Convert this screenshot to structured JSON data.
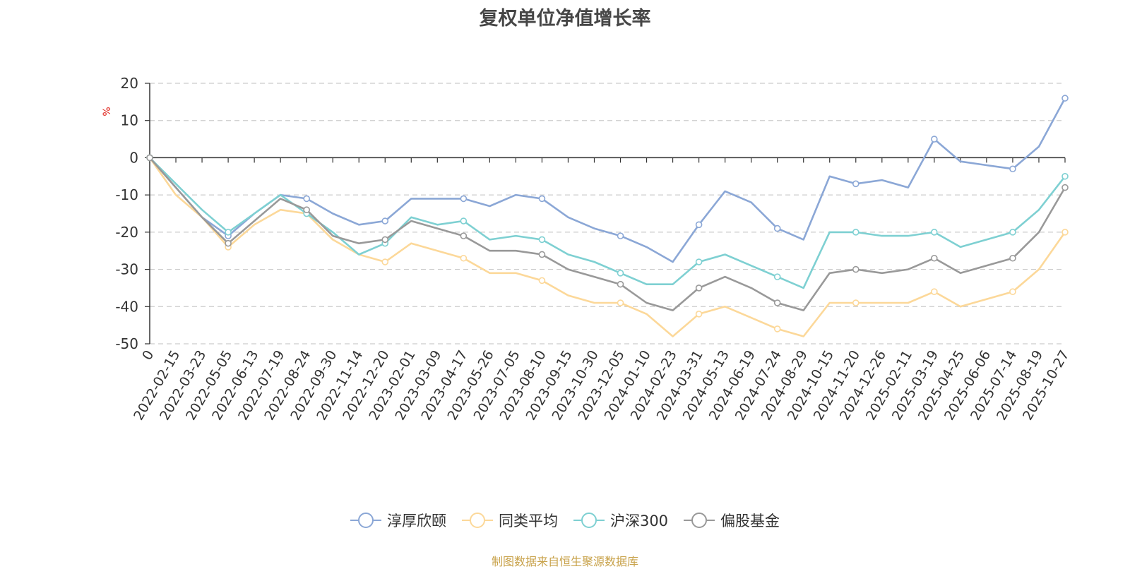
{
  "chart_data": {
    "type": "line",
    "title": "复权单位净值增长率",
    "ylabel": "%",
    "ylim": [
      -50,
      20
    ],
    "yticks": [
      20,
      10,
      0,
      -10,
      -20,
      -30,
      -40,
      -50
    ],
    "grid": true,
    "legend_position": "bottom",
    "x": [
      "0",
      "2022-02-15",
      "2022-03-23",
      "2022-05-05",
      "2022-06-13",
      "2022-07-19",
      "2022-08-24",
      "2022-09-30",
      "2022-11-14",
      "2022-12-20",
      "2023-02-01",
      "2023-03-09",
      "2023-04-17",
      "2023-05-26",
      "2023-07-05",
      "2023-08-10",
      "2023-09-15",
      "2023-10-30",
      "2023-12-05",
      "2024-01-10",
      "2024-02-23",
      "2024-03-31",
      "2024-05-13",
      "2024-06-19",
      "2024-07-24",
      "2024-08-29",
      "2024-10-15",
      "2024-11-20",
      "2024-12-26",
      "2025-02-11",
      "2025-03-19",
      "2025-04-25",
      "2025-06-06",
      "2025-07-14",
      "2025-08-19",
      "2025-10-27"
    ],
    "series": [
      {
        "name": "淳厚欣颐",
        "color": "#8ba7d6",
        "values": [
          0,
          -8,
          -16,
          -21,
          -15,
          -10,
          -11,
          -15,
          -18,
          -17,
          -11,
          -11,
          -11,
          -13,
          -10,
          -11,
          -16,
          -19,
          -21,
          -24,
          -28,
          -18,
          -9,
          -12,
          -19,
          -22,
          -5,
          -7,
          -6,
          -8,
          5,
          -1,
          -2,
          -3,
          3,
          16
        ]
      },
      {
        "name": "同类平均",
        "color": "#fcd899",
        "values": [
          0,
          -10,
          -16,
          -24,
          -18,
          -14,
          -15,
          -22,
          -26,
          -28,
          -23,
          -25,
          -27,
          -31,
          -31,
          -33,
          -37,
          -39,
          -39,
          -42,
          -48,
          -42,
          -40,
          -43,
          -46,
          -48,
          -39,
          -39,
          -39,
          -39,
          -36,
          -40,
          -38,
          -36,
          -30,
          -20
        ]
      },
      {
        "name": "沪深300",
        "color": "#7ed0d2",
        "values": [
          0,
          -7,
          -14,
          -20,
          -15,
          -10,
          -15,
          -20,
          -26,
          -23,
          -16,
          -18,
          -17,
          -22,
          -21,
          -22,
          -26,
          -28,
          -31,
          -34,
          -34,
          -28,
          -26,
          -29,
          -32,
          -35,
          -20,
          -20,
          -21,
          -21,
          -20,
          -24,
          -22,
          -20,
          -14,
          -5
        ]
      },
      {
        "name": "偏股基金",
        "color": "#999999",
        "values": [
          0,
          -8,
          -16,
          -23,
          -17,
          -11,
          -14,
          -21,
          -23,
          -22,
          -17,
          -19,
          -21,
          -25,
          -25,
          -26,
          -30,
          -32,
          -34,
          -39,
          -41,
          -35,
          -32,
          -35,
          -39,
          -41,
          -31,
          -30,
          -31,
          -30,
          -27,
          -31,
          -29,
          -27,
          -20,
          -8
        ]
      }
    ]
  },
  "footer": {
    "source_text": "制图数据来自恒生聚源数据库"
  }
}
